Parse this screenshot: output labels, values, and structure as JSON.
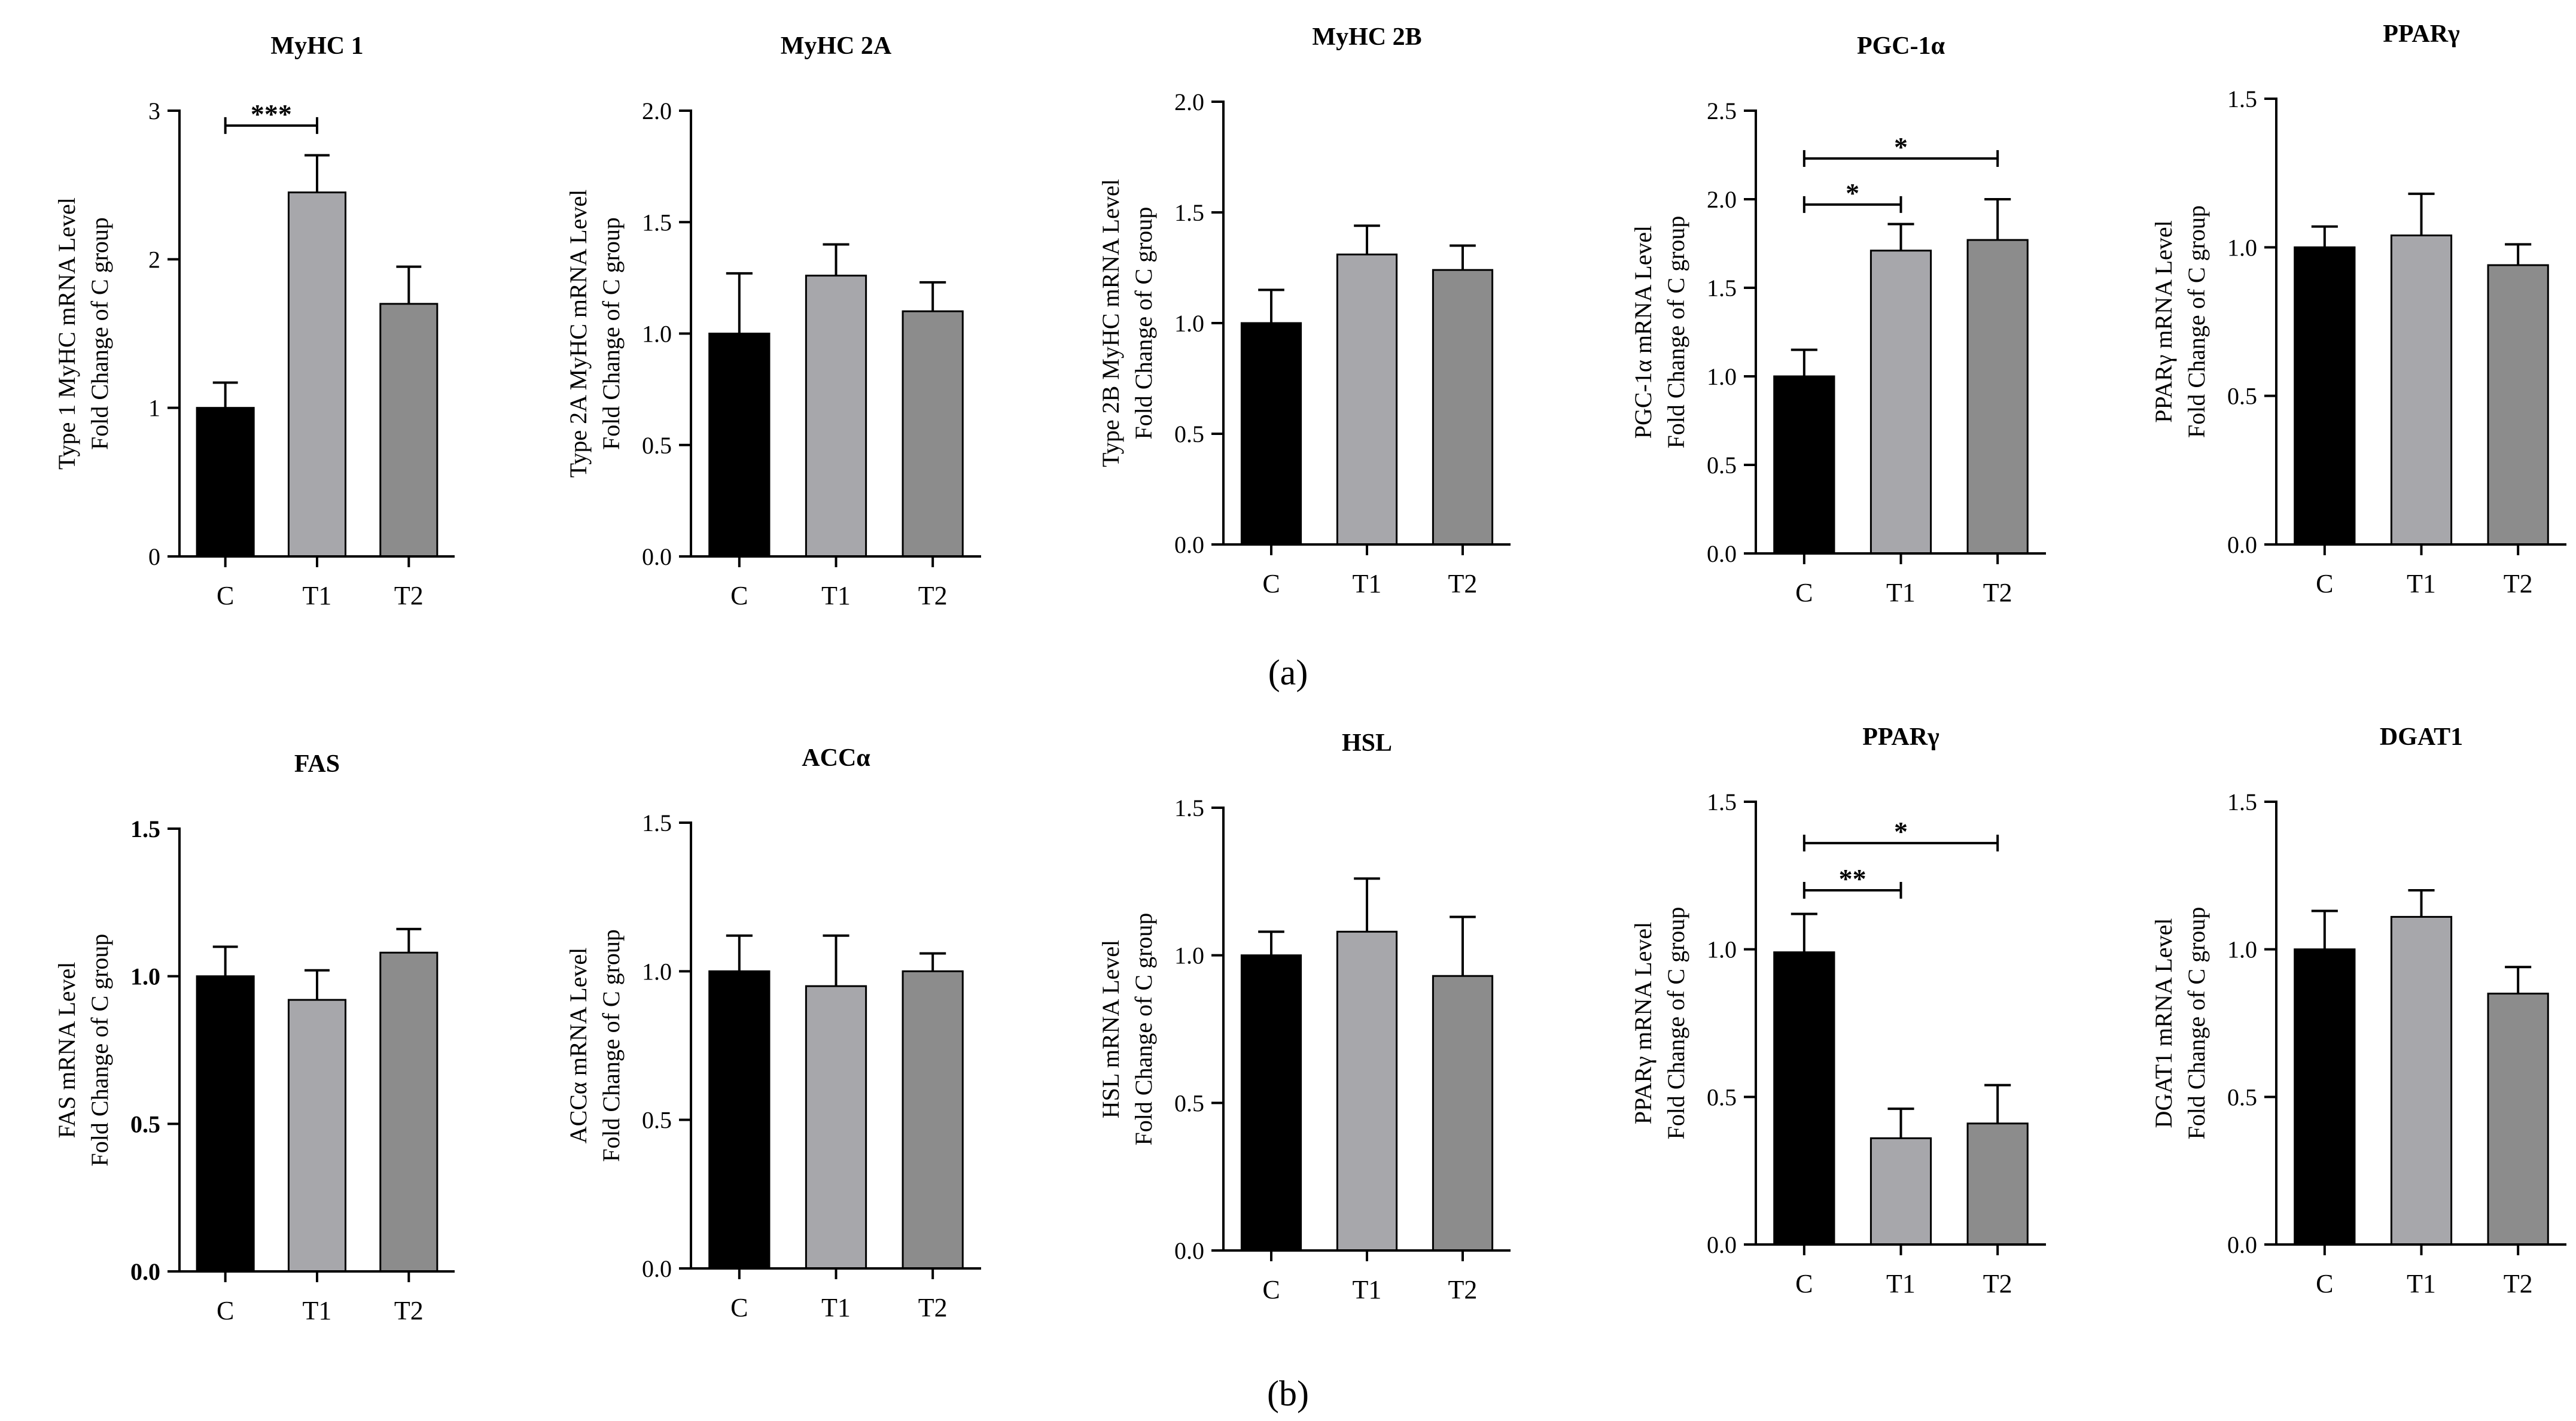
{
  "colors": {
    "C": "#000000",
    "T1": "#a7a7ab",
    "T2": "#8c8c8c",
    "axis": "#000000"
  },
  "panel_a_label": "(a)",
  "panel_b_label": "(b)",
  "chart_data": [
    {
      "type": "bar",
      "title": "MyHC 1",
      "ylabel_line1": "Type 1 MyHC mRNA Level",
      "ylabel_line2": "Fold Change of C group",
      "categories": [
        "C",
        "T1",
        "T2"
      ],
      "values": [
        1.0,
        2.45,
        1.7
      ],
      "errors": [
        0.17,
        0.25,
        0.25
      ],
      "ylim": [
        0,
        3
      ],
      "ticks": [
        "0",
        "1",
        "2",
        "3"
      ],
      "tick_values": [
        0,
        1,
        2,
        3
      ],
      "bold_ticks": false,
      "significance": [
        {
          "from": 0,
          "to": 1,
          "y": 2.9,
          "label": "***"
        }
      ]
    },
    {
      "type": "bar",
      "title": "MyHC 2A",
      "ylabel_line1": "Type 2A MyHC mRNA Level",
      "ylabel_line2": "Fold Change of C group",
      "categories": [
        "C",
        "T1",
        "T2"
      ],
      "values": [
        1.0,
        1.26,
        1.1
      ],
      "errors": [
        0.27,
        0.14,
        0.13
      ],
      "ylim": [
        0,
        2
      ],
      "ticks": [
        "0.0",
        "0.5",
        "1.0",
        "1.5",
        "2.0"
      ],
      "tick_values": [
        0,
        0.5,
        1,
        1.5,
        2
      ],
      "bold_ticks": false,
      "significance": []
    },
    {
      "type": "bar",
      "title": "MyHC 2B",
      "ylabel_line1": "Type 2B MyHC mRNA Level",
      "ylabel_line2": "Fold Change of C group",
      "categories": [
        "C",
        "T1",
        "T2"
      ],
      "values": [
        1.0,
        1.31,
        1.24
      ],
      "errors": [
        0.15,
        0.13,
        0.11
      ],
      "ylim": [
        0,
        2
      ],
      "ticks": [
        "0.0",
        "0.5",
        "1.0",
        "1.5",
        "2.0"
      ],
      "tick_values": [
        0,
        0.5,
        1,
        1.5,
        2
      ],
      "bold_ticks": false,
      "significance": []
    },
    {
      "type": "bar",
      "title": "PGC-1α",
      "ylabel_line1": "PGC-1α mRNA Level",
      "ylabel_line2": "Fold Change of C group",
      "categories": [
        "C",
        "T1",
        "T2"
      ],
      "values": [
        1.0,
        1.71,
        1.77
      ],
      "errors": [
        0.15,
        0.15,
        0.23
      ],
      "ylim": [
        0,
        2.5
      ],
      "ticks": [
        "0.0",
        "0.5",
        "1.0",
        "1.5",
        "2.0",
        "2.5"
      ],
      "tick_values": [
        0,
        0.5,
        1,
        1.5,
        2,
        2.5
      ],
      "bold_ticks": false,
      "significance": [
        {
          "from": 0,
          "to": 2,
          "y": 2.23,
          "label": "*"
        },
        {
          "from": 0,
          "to": 1,
          "y": 1.97,
          "label": "*"
        }
      ]
    },
    {
      "type": "bar",
      "title": "PPARγ",
      "ylabel_line1": "PPARγ mRNA Level",
      "ylabel_line2": "Fold Change of C group",
      "categories": [
        "C",
        "T1",
        "T2"
      ],
      "values": [
        1.0,
        1.04,
        0.94
      ],
      "errors": [
        0.07,
        0.14,
        0.07
      ],
      "ylim": [
        0,
        1.5
      ],
      "ticks": [
        "0.0",
        "0.5",
        "1.0",
        "1.5"
      ],
      "tick_values": [
        0,
        0.5,
        1,
        1.5
      ],
      "bold_ticks": false,
      "significance": []
    },
    {
      "type": "bar",
      "title": "FAS",
      "ylabel_line1": "FAS mRNA Level",
      "ylabel_line2": "Fold Change of C group",
      "categories": [
        "C",
        "T1",
        "T2"
      ],
      "values": [
        1.0,
        0.92,
        1.08
      ],
      "errors": [
        0.1,
        0.1,
        0.08
      ],
      "ylim": [
        0,
        1.5
      ],
      "ticks": [
        "0.0",
        "0.5",
        "1.0",
        "1.5"
      ],
      "tick_values": [
        0,
        0.5,
        1,
        1.5
      ],
      "bold_ticks": true,
      "significance": []
    },
    {
      "type": "bar",
      "title": "ACCα",
      "ylabel_line1": "ACCα mRNA Level",
      "ylabel_line2": "Fold Change of C group",
      "categories": [
        "C",
        "T1",
        "T2"
      ],
      "values": [
        1.0,
        0.95,
        1.0
      ],
      "errors": [
        0.12,
        0.17,
        0.06
      ],
      "ylim": [
        0,
        1.5
      ],
      "ticks": [
        "0.0",
        "0.5",
        "1.0",
        "1.5"
      ],
      "tick_values": [
        0,
        0.5,
        1,
        1.5
      ],
      "bold_ticks": false,
      "significance": []
    },
    {
      "type": "bar",
      "title": "HSL",
      "ylabel_line1": "HSL mRNA Level",
      "ylabel_line2": "Fold Change of C group",
      "categories": [
        "C",
        "T1",
        "T2"
      ],
      "values": [
        1.0,
        1.08,
        0.93
      ],
      "errors": [
        0.08,
        0.18,
        0.2
      ],
      "ylim": [
        0,
        1.5
      ],
      "ticks": [
        "0.0",
        "0.5",
        "1.0",
        "1.5"
      ],
      "tick_values": [
        0,
        0.5,
        1,
        1.5
      ],
      "bold_ticks": false,
      "significance": []
    },
    {
      "type": "bar",
      "title": "PPARγ",
      "ylabel_line1": "PPARγ mRNA Level",
      "ylabel_line2": "Fold Change of C group",
      "categories": [
        "C",
        "T1",
        "T2"
      ],
      "values": [
        0.99,
        0.36,
        0.41
      ],
      "errors": [
        0.13,
        0.1,
        0.13
      ],
      "ylim": [
        0,
        1.5
      ],
      "ticks": [
        "0.0",
        "0.5",
        "1.0",
        "1.5"
      ],
      "tick_values": [
        0,
        0.5,
        1,
        1.5
      ],
      "bold_ticks": false,
      "significance": [
        {
          "from": 0,
          "to": 2,
          "y": 1.36,
          "label": "*"
        },
        {
          "from": 0,
          "to": 1,
          "y": 1.2,
          "label": "**"
        }
      ]
    },
    {
      "type": "bar",
      "title": "DGAT1",
      "ylabel_line1": "DGAT1 mRNA Level",
      "ylabel_line2": "Fold Change of C group",
      "categories": [
        "C",
        "T1",
        "T2"
      ],
      "values": [
        1.0,
        1.11,
        0.85
      ],
      "errors": [
        0.13,
        0.09,
        0.09
      ],
      "ylim": [
        0,
        1.5
      ],
      "ticks": [
        "0.0",
        "0.5",
        "1.0",
        "1.5"
      ],
      "tick_values": [
        0,
        0.5,
        1,
        1.5
      ],
      "bold_ticks": false,
      "significance": []
    }
  ]
}
